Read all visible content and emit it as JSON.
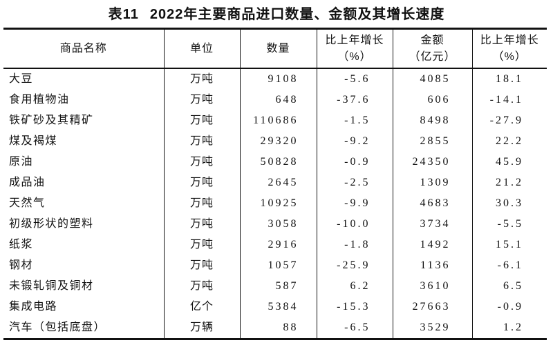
{
  "title": {
    "label": "表11",
    "text": "2022年主要商品进口数量、金额及其增长速度"
  },
  "table": {
    "headers": [
      [
        "商品名称"
      ],
      [
        "单位"
      ],
      [
        "数量"
      ],
      [
        "比上年增长",
        "（%）"
      ],
      [
        "金额",
        "（亿元）"
      ],
      [
        "比上年增长",
        "（%）"
      ]
    ],
    "rows": [
      [
        "大豆",
        "万吨",
        "9108",
        "-5.6",
        "4085",
        "18.1"
      ],
      [
        "食用植物油",
        "万吨",
        "648",
        "-37.6",
        "606",
        "-14.1"
      ],
      [
        "铁矿砂及其精矿",
        "万吨",
        "110686",
        "-1.5",
        "8498",
        "-27.9"
      ],
      [
        "煤及褐煤",
        "万吨",
        "29320",
        "-9.2",
        "2855",
        "22.2"
      ],
      [
        "原油",
        "万吨",
        "50828",
        "-0.9",
        "24350",
        "45.9"
      ],
      [
        "成品油",
        "万吨",
        "2645",
        "-2.5",
        "1309",
        "21.2"
      ],
      [
        "天然气",
        "万吨",
        "10925",
        "-9.9",
        "4683",
        "30.3"
      ],
      [
        "初级形状的塑料",
        "万吨",
        "3058",
        "-10.0",
        "3734",
        "-5.5"
      ],
      [
        "纸浆",
        "万吨",
        "2916",
        "-1.8",
        "1492",
        "15.1"
      ],
      [
        "钢材",
        "万吨",
        "1057",
        "-25.9",
        "1136",
        "-6.1"
      ],
      [
        "未锻轧铜及铜材",
        "万吨",
        "587",
        "6.2",
        "3610",
        "6.5"
      ],
      [
        "集成电路",
        "亿个",
        "5384",
        "-15.3",
        "27663",
        "-0.9"
      ],
      [
        "汽车（包括底盘）",
        "万辆",
        "88",
        "-6.5",
        "3529",
        "1.2"
      ]
    ],
    "colors": {
      "text": "#111111",
      "border": "#111111",
      "background": "#ffffff"
    }
  }
}
